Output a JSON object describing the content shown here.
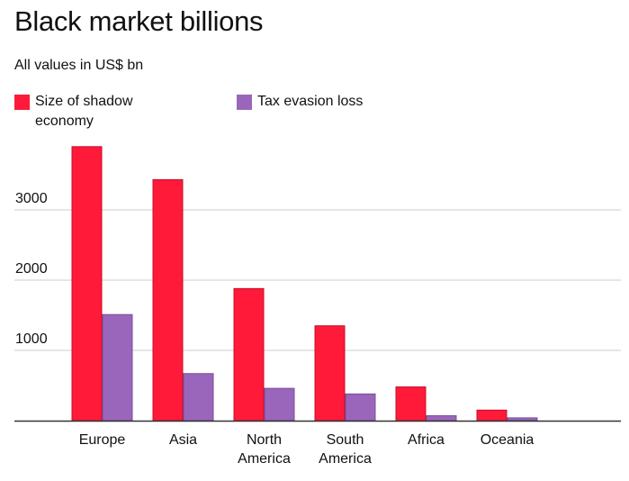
{
  "chart_data": {
    "type": "bar",
    "title": "Black market billions",
    "subtitle": "All values in US$ bn",
    "categories": [
      "Europe",
      "Asia",
      "North America",
      "South America",
      "Africa",
      "Oceania"
    ],
    "category_lines": [
      [
        "Europe"
      ],
      [
        "Asia"
      ],
      [
        "North",
        "America"
      ],
      [
        "South",
        "America"
      ],
      [
        "Africa"
      ],
      [
        "Oceania"
      ]
    ],
    "series": [
      {
        "name": "Size of shadow economy",
        "values": [
          3900,
          3430,
          1880,
          1350,
          480,
          150
        ],
        "color": "#ff1a3a"
      },
      {
        "name": "Tax evasion loss",
        "values": [
          1510,
          670,
          460,
          380,
          70,
          40
        ],
        "color": "#9966bb"
      }
    ],
    "legend_lines": [
      [
        "Size of shadow",
        "economy"
      ],
      [
        "Tax evasion loss"
      ]
    ],
    "yticks": [
      1000,
      2000,
      3000
    ],
    "ylim": [
      0,
      4000
    ],
    "grid": true,
    "legend_position": "top"
  }
}
